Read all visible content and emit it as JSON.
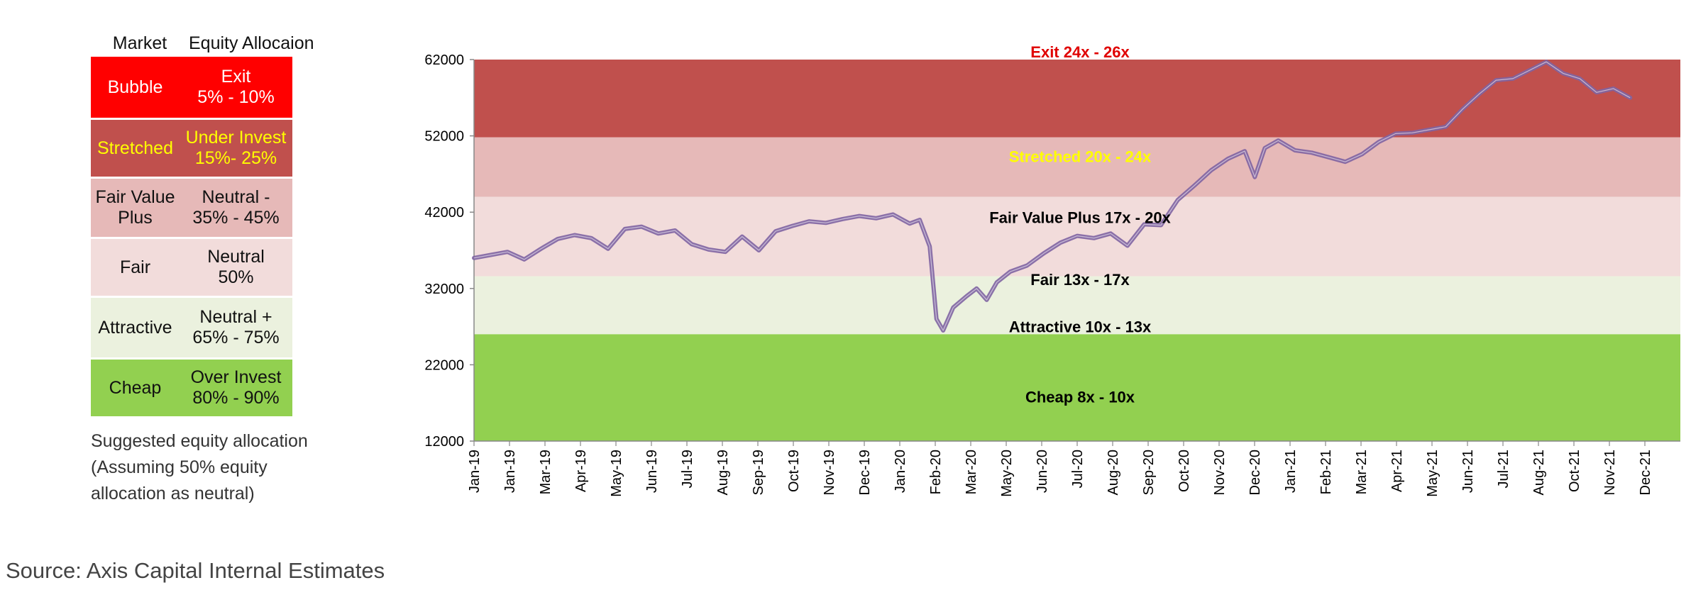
{
  "table": {
    "header_market": "Market",
    "header_alloc": "Equity Allocaion",
    "rows": [
      {
        "market": "Bubble",
        "alloc": "Exit\n5% - 10%",
        "bg": "#ff0000",
        "fg": "#ffffff"
      },
      {
        "market": "Stretched",
        "alloc": "Under Invest\n15%- 25%",
        "bg": "#c0504d",
        "fg": "#ffff00"
      },
      {
        "market": "Fair Value\nPlus",
        "alloc": "Neutral -\n35% - 45%",
        "bg": "#e6b9b8",
        "fg": "#111111"
      },
      {
        "market": "Fair",
        "alloc": "Neutral\n50%",
        "bg": "#f2dcdb",
        "fg": "#111111"
      },
      {
        "market": "Attractive",
        "alloc": "Neutral +\n65% - 75%",
        "bg": "#ebf1de",
        "fg": "#111111"
      },
      {
        "market": "Cheap",
        "alloc": "Over Invest\n80% - 90%",
        "bg": "#92d050",
        "fg": "#111111"
      }
    ]
  },
  "note": {
    "line1": "Suggested equity allocation",
    "line2": "(Assuming 50% equity",
    "line3": "allocation as neutral)"
  },
  "source": "Source: Axis Capital Internal Estimates",
  "chart_data": {
    "type": "line",
    "ylim": [
      12000,
      62000
    ],
    "yticks": [
      12000,
      22000,
      32000,
      42000,
      52000,
      62000
    ],
    "xlim": [
      0,
      36
    ],
    "categories": [
      "Jan-19",
      "Jan-19",
      "Mar-19",
      "Apr-19",
      "May-19",
      "Jun-19",
      "Jul-19",
      "Aug-19",
      "Sep-19",
      "Oct-19",
      "Nov-19",
      "Dec-19",
      "Jan-20",
      "Feb-20",
      "Mar-20",
      "May-20",
      "Jun-20",
      "Jul-20",
      "Aug-20",
      "Sep-20",
      "Oct-20",
      "Nov-20",
      "Dec-20",
      "Jan-21",
      "Feb-21",
      "Mar-21",
      "Apr-21",
      "May-21",
      "Jun-21",
      "Jul-21",
      "Aug-21",
      "Oct-21",
      "Nov-21",
      "Dec-21"
    ],
    "bands": [
      {
        "label": "Exit 24x - 26x",
        "from": 51800,
        "to": 62000,
        "color": "#c0504d",
        "label_color": "#e00000",
        "label_y": 63000
      },
      {
        "label": "Stretched 20x - 24x",
        "from": 44000,
        "to": 51800,
        "color": "#e6b9b8",
        "label_color": "#ffff00",
        "label_y": 49300
      },
      {
        "label": "Fair Value Plus 17x - 20x",
        "from": 33600,
        "to": 44000,
        "color": "#f2dcdb",
        "label_color": "#000000",
        "label_y": 41300
      },
      {
        "label": "Fair 13x - 17x",
        "from": 26000,
        "to": 33600,
        "color": "#ebf1de",
        "label_color": "#000000",
        "label_y": 33200
      },
      {
        "label": "Attractive  10x - 13x",
        "from": 26000,
        "to": 26000,
        "color": "#ebf1de",
        "label_color": "#000000",
        "label_y": 27000
      },
      {
        "label": "Cheap 8x - 10x",
        "from": 12000,
        "to": 26000,
        "color": "#92d050",
        "label_color": "#000000",
        "label_y": 17800
      }
    ],
    "series": [
      {
        "color": "#8064a2",
        "x": [
          0,
          0.5,
          1,
          1.5,
          2,
          2.5,
          3,
          3.5,
          4,
          4.5,
          5,
          5.5,
          6,
          6.5,
          7,
          7.5,
          8,
          8.5,
          9,
          9.5,
          10,
          10.5,
          11,
          11.5,
          12,
          12.5,
          13,
          13.3,
          13.6,
          13.8,
          14,
          14.3,
          14.7,
          15,
          15.3,
          15.6,
          16,
          16.5,
          17,
          17.5,
          18,
          18.5,
          19,
          19.5,
          20,
          20.5,
          21,
          21.5,
          22,
          22.5,
          23,
          23.3,
          23.6,
          24,
          24.5,
          25,
          25.5,
          26,
          26.5,
          27,
          27.5,
          28,
          28.5,
          29,
          29.5,
          30,
          30.5,
          31,
          31.5,
          32,
          32.5,
          33,
          33.5,
          34,
          34.5
        ],
        "y": [
          36000,
          36400,
          36800,
          35800,
          37200,
          38500,
          39000,
          38600,
          37200,
          39800,
          40100,
          39200,
          39600,
          37800,
          37100,
          36800,
          38800,
          37000,
          39500,
          40200,
          40800,
          40600,
          41100,
          41500,
          41200,
          41700,
          40500,
          41000,
          37500,
          28000,
          26500,
          29500,
          31000,
          32000,
          30500,
          32800,
          34200,
          35000,
          36600,
          38000,
          38900,
          38600,
          39200,
          37600,
          40400,
          40300,
          43600,
          45500,
          47500,
          49000,
          50000,
          46600,
          50400,
          51400,
          50100,
          49800,
          49200,
          48600,
          49600,
          51200,
          52300,
          52400,
          52800,
          53200,
          55500,
          57500,
          59300,
          59500,
          60600,
          61700,
          60200,
          59500,
          57700,
          58200,
          57000
        ]
      }
    ]
  }
}
